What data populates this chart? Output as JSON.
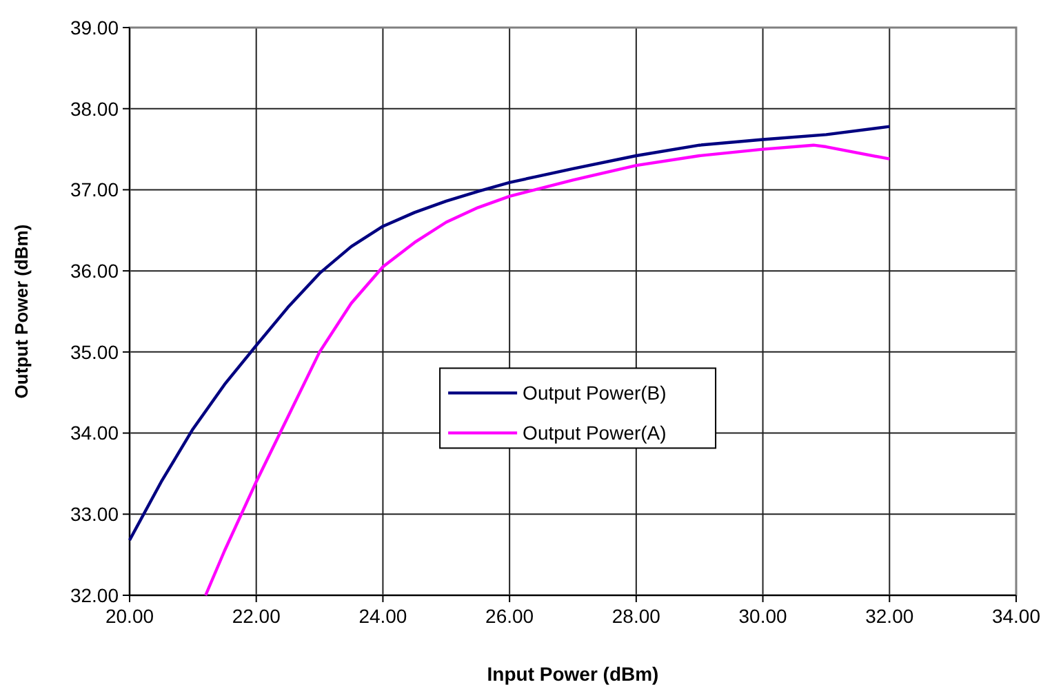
{
  "chart_data": {
    "type": "line",
    "xlabel": "Input Power (dBm)",
    "ylabel": "Output Power (dBm)",
    "xlim": [
      20,
      34
    ],
    "ylim": [
      32,
      39
    ],
    "xticks": [
      {
        "value": 20,
        "label": "20.00"
      },
      {
        "value": 22,
        "label": "22.00"
      },
      {
        "value": 24,
        "label": "24.00"
      },
      {
        "value": 26,
        "label": "26.00"
      },
      {
        "value": 28,
        "label": "28.00"
      },
      {
        "value": 30,
        "label": "30.00"
      },
      {
        "value": 32,
        "label": "32.00"
      },
      {
        "value": 34,
        "label": "34.00"
      }
    ],
    "yticks": [
      {
        "value": 32,
        "label": "32.00"
      },
      {
        "value": 33,
        "label": "33.00"
      },
      {
        "value": 34,
        "label": "34.00"
      },
      {
        "value": 35,
        "label": "35.00"
      },
      {
        "value": 36,
        "label": "36.00"
      },
      {
        "value": 37,
        "label": "37.00"
      },
      {
        "value": 38,
        "label": "38.00"
      },
      {
        "value": 39,
        "label": "39.00"
      }
    ],
    "grid": true,
    "legend": "center",
    "marker": "none",
    "line_style": "solid",
    "series": [
      {
        "name": "Output Power(B)",
        "color": "#000080",
        "x": [
          20,
          20.5,
          21,
          21.5,
          22,
          22.5,
          23,
          23.5,
          24,
          24.5,
          25,
          25.5,
          26,
          27,
          28,
          29,
          30,
          31,
          32
        ],
        "values": [
          32.68,
          33.4,
          34.05,
          34.6,
          35.08,
          35.55,
          35.97,
          36.3,
          36.55,
          36.72,
          36.86,
          36.98,
          37.09,
          37.26,
          37.42,
          37.55,
          37.62,
          37.68,
          37.78
        ]
      },
      {
        "name": "Output Power(A)",
        "color": "#ff00ff",
        "x": [
          21.2,
          21.5,
          22,
          22.5,
          23,
          23.5,
          24,
          24.5,
          25,
          25.5,
          26,
          27,
          28,
          29,
          30,
          30.8,
          31,
          32
        ],
        "values": [
          32.0,
          32.55,
          33.4,
          34.2,
          35.0,
          35.6,
          36.05,
          36.35,
          36.6,
          36.78,
          36.92,
          37.12,
          37.3,
          37.42,
          37.5,
          37.55,
          37.53,
          37.38
        ]
      }
    ]
  }
}
